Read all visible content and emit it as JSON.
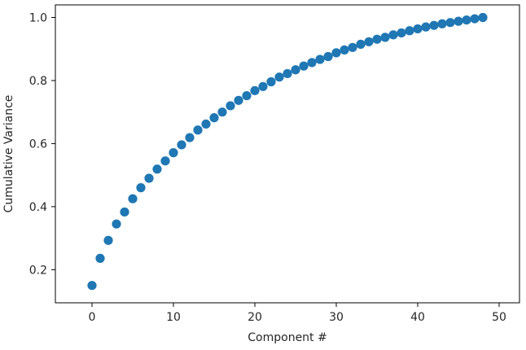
{
  "chart_data": {
    "type": "scatter",
    "title": "",
    "xlabel": "Component #",
    "ylabel": "Cumulative Variance",
    "xlim": [
      -4.5,
      52.5
    ],
    "ylim": [
      0.095,
      1.04
    ],
    "xticks": [
      0,
      10,
      20,
      30,
      40,
      50
    ],
    "yticks": [
      0.2,
      0.4,
      0.6,
      0.8,
      1.0
    ],
    "xtick_labels": [
      "0",
      "10",
      "20",
      "30",
      "40",
      "50"
    ],
    "ytick_labels": [
      "0.2",
      "0.4",
      "0.6",
      "0.8",
      "1.0"
    ],
    "grid": false,
    "color": "#1f77b4",
    "series": [
      {
        "x": [
          0,
          1,
          2,
          3,
          4,
          5,
          6,
          7,
          8,
          9,
          10,
          11,
          12,
          13,
          14,
          15,
          16,
          17,
          18,
          19,
          20,
          21,
          22,
          23,
          24,
          25,
          26,
          27,
          28,
          29,
          30,
          31,
          32,
          33,
          34,
          35,
          36,
          37,
          38,
          39,
          40,
          41,
          42,
          43,
          44,
          45,
          46,
          47,
          48
        ],
        "y": [
          0.15,
          0.236,
          0.293,
          0.345,
          0.383,
          0.425,
          0.46,
          0.49,
          0.519,
          0.545,
          0.571,
          0.596,
          0.619,
          0.643,
          0.662,
          0.682,
          0.7,
          0.72,
          0.737,
          0.752,
          0.768,
          0.781,
          0.796,
          0.811,
          0.822,
          0.834,
          0.846,
          0.857,
          0.867,
          0.876,
          0.888,
          0.897,
          0.905,
          0.915,
          0.923,
          0.931,
          0.937,
          0.945,
          0.951,
          0.958,
          0.964,
          0.97,
          0.975,
          0.98,
          0.984,
          0.988,
          0.992,
          0.996,
          1.0
        ]
      }
    ]
  }
}
